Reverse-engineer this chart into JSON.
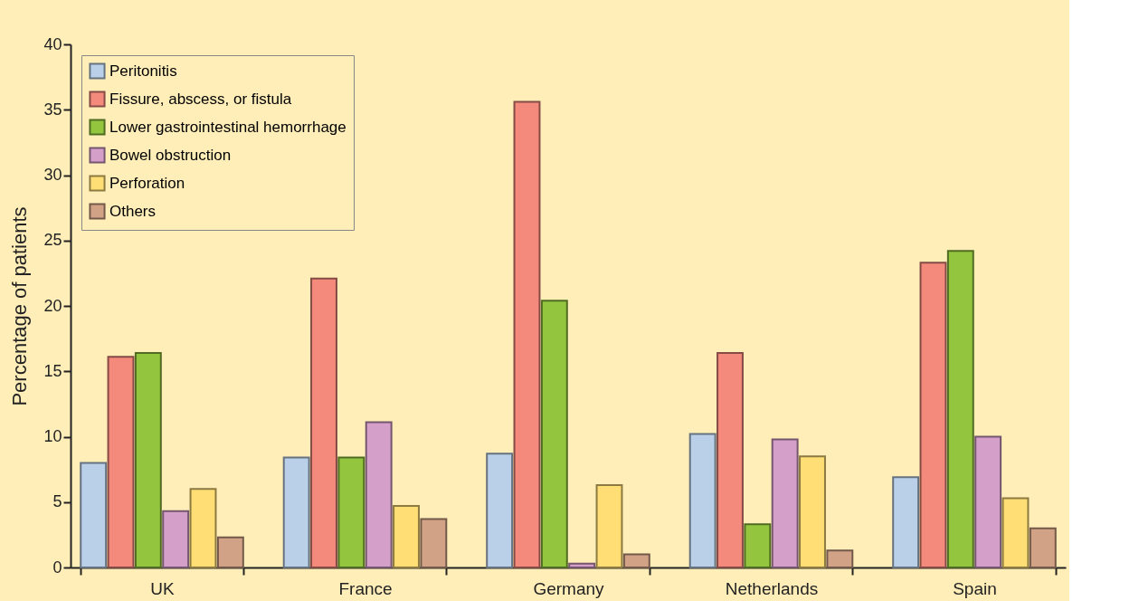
{
  "chart_data": {
    "type": "bar",
    "ylabel": "Percentage of patients",
    "categories": [
      "UK",
      "France",
      "Germany",
      "Netherlands",
      "Spain"
    ],
    "series": [
      {
        "name": "Peritonitis",
        "color": "#bad0e9",
        "values": [
          8.0,
          8.4,
          8.7,
          10.2,
          6.9
        ]
      },
      {
        "name": "Fissure, abscess, or fistula",
        "color": "#f38a7c",
        "values": [
          16.1,
          22.1,
          35.6,
          16.4,
          23.3
        ]
      },
      {
        "name": "Lower gastrointestinal hemorrhage",
        "color": "#93c53e",
        "values": [
          16.4,
          8.4,
          20.4,
          3.3,
          24.2
        ]
      },
      {
        "name": "Bowel obstruction",
        "color": "#d49fc9",
        "values": [
          4.3,
          11.1,
          0.3,
          9.8,
          10.0
        ]
      },
      {
        "name": "Perforation",
        "color": "#ffde76",
        "values": [
          6.0,
          4.7,
          6.3,
          8.5,
          5.3
        ]
      },
      {
        "name": "Others",
        "color": "#d2a286",
        "values": [
          2.3,
          3.7,
          1.0,
          1.3,
          3.0
        ]
      }
    ],
    "ylim": [
      0,
      40
    ],
    "yticks": [
      0,
      5,
      10,
      15,
      20,
      25,
      30,
      35,
      40
    ],
    "grid": false,
    "legend": "top left"
  }
}
